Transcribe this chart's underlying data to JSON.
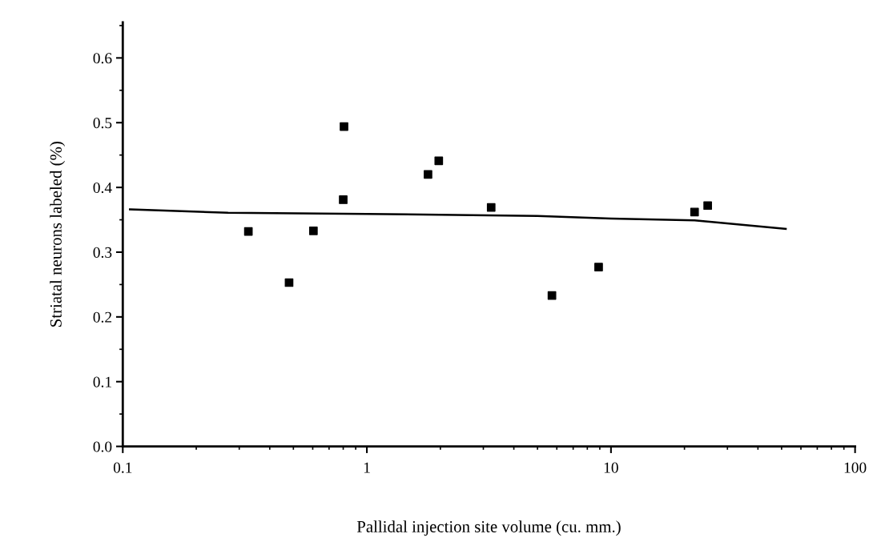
{
  "chart_data": {
    "type": "scatter",
    "xlabel": "Pallidal injection site volume (cu. mm.)",
    "ylabel": "Striatal neurons labeled (%)",
    "log": "x",
    "xlim": [
      0.1,
      100
    ],
    "xticks": [
      0.1,
      1,
      10,
      100
    ],
    "ylim": [
      0,
      0.655
    ],
    "yticks": [
      {
        "value": 0,
        "label": "0.0"
      },
      0.1,
      0.2,
      0.3,
      0.4,
      0.5,
      0.6
    ],
    "grid": false,
    "series": [
      {
        "marker": "square",
        "color": "#000000",
        "x": [
          0.327,
          0.48,
          0.604,
          0.806,
          0.8,
          1.78,
          1.97,
          3.23,
          5.73,
          8.9,
          22.0,
          24.9
        ],
        "values": [
          0.332,
          0.253,
          0.333,
          0.494,
          0.381,
          0.42,
          0.441,
          0.369,
          0.233,
          0.277,
          0.362,
          0.372
        ]
      },
      {
        "type": "line",
        "color": "#000000",
        "line_style": "solid",
        "x": [
          0.107,
          0.27,
          1,
          5,
          10,
          22,
          27,
          52
        ],
        "values": [
          0.366,
          0.361,
          0.359,
          0.356,
          0.352,
          0.349,
          0.346,
          0.336
        ]
      }
    ]
  }
}
